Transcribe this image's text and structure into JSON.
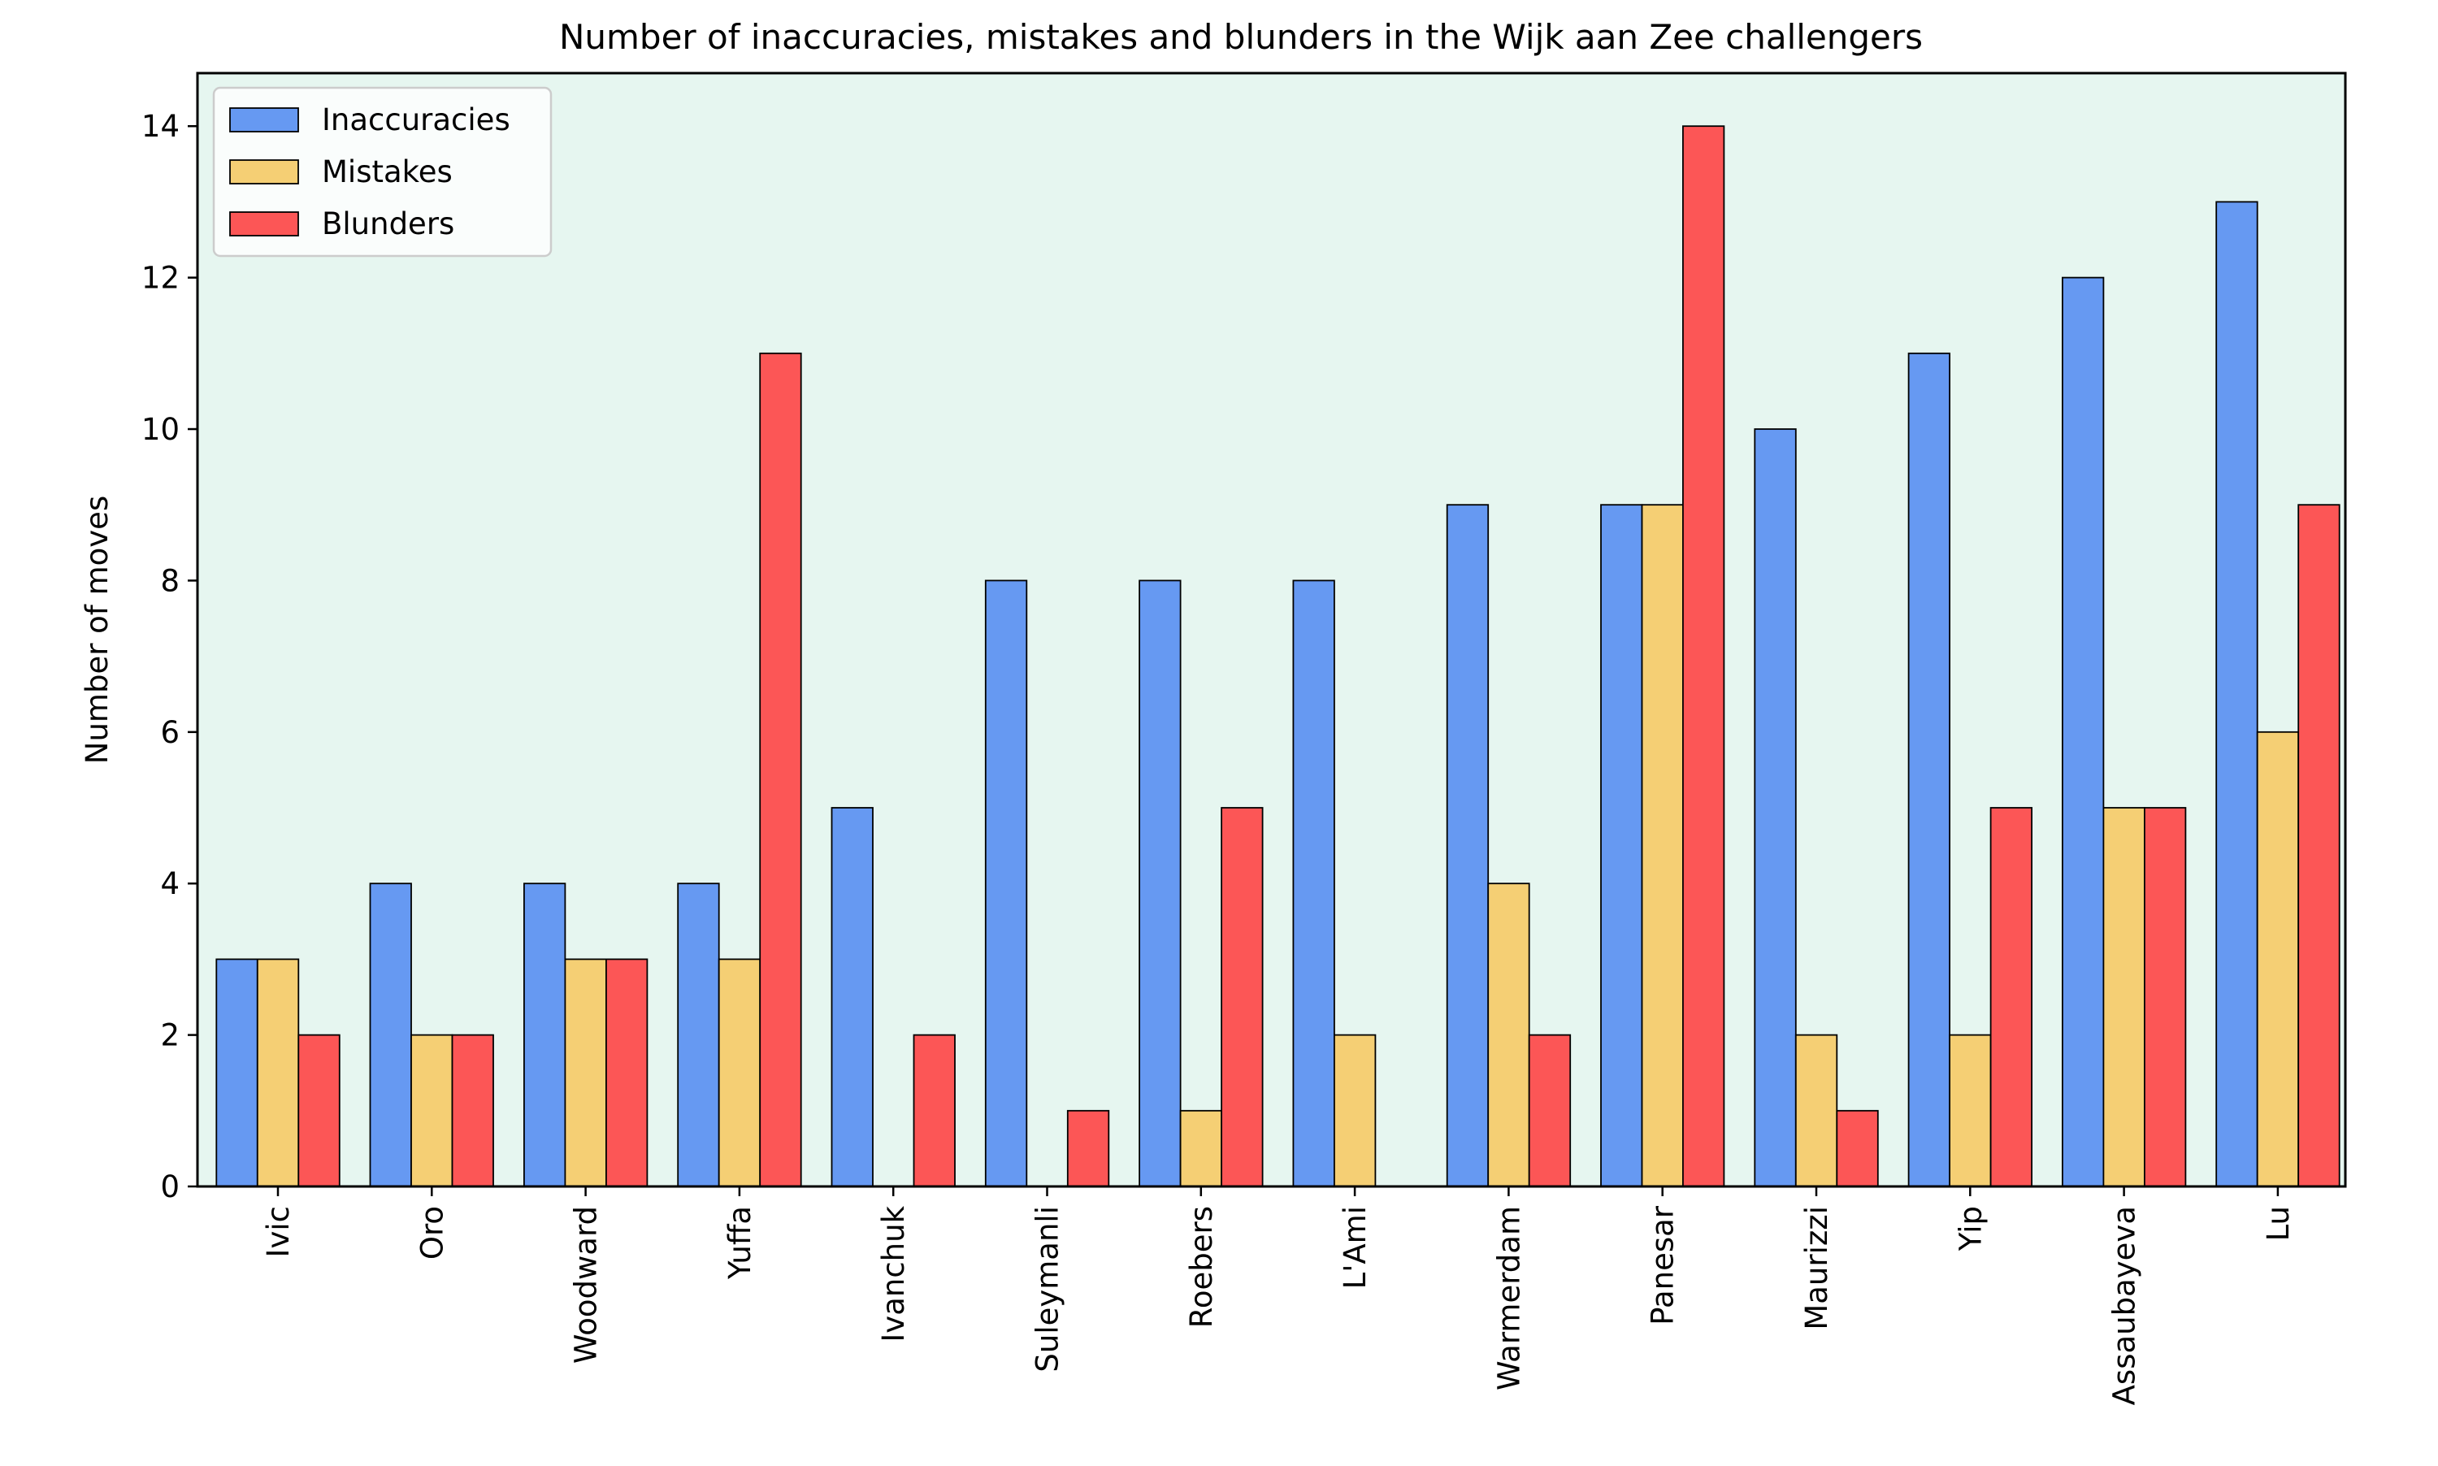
{
  "chart_data": {
    "type": "bar",
    "title": "Number of inaccuracies, mistakes and blunders in the Wijk aan Zee challengers",
    "xlabel": "",
    "ylabel": "Number of moves",
    "categories": [
      "Ivic",
      "Oro",
      "Woodward",
      "Yuffa",
      "Ivanchuk",
      "Suleymanli",
      "Roebers",
      "L'Ami",
      "Warmerdam",
      "Panesar",
      "Maurizzi",
      "Yip",
      "Assaubayeva",
      "Lu"
    ],
    "series": [
      {
        "name": "Inaccuracies",
        "color": "#6699f2",
        "values": [
          3,
          4,
          4,
          4,
          5,
          8,
          8,
          8,
          9,
          9,
          10,
          11,
          12,
          13
        ]
      },
      {
        "name": "Mistakes",
        "color": "#f5cf74",
        "values": [
          3,
          2,
          3,
          3,
          0,
          0,
          1,
          2,
          4,
          9,
          2,
          2,
          5,
          6
        ]
      },
      {
        "name": "Blunders",
        "color": "#fc5656",
        "values": [
          2,
          2,
          3,
          11,
          2,
          1,
          5,
          0,
          2,
          14,
          1,
          5,
          5,
          9
        ]
      }
    ],
    "ylim": [
      0,
      14.7
    ],
    "yticks": [
      "0",
      "2",
      "4",
      "6",
      "8",
      "10",
      "12",
      "14"
    ],
    "legend_position": "top-left",
    "grid": false,
    "plot_background": "#e6f6f0",
    "x_tick_rotation": "vertical"
  }
}
